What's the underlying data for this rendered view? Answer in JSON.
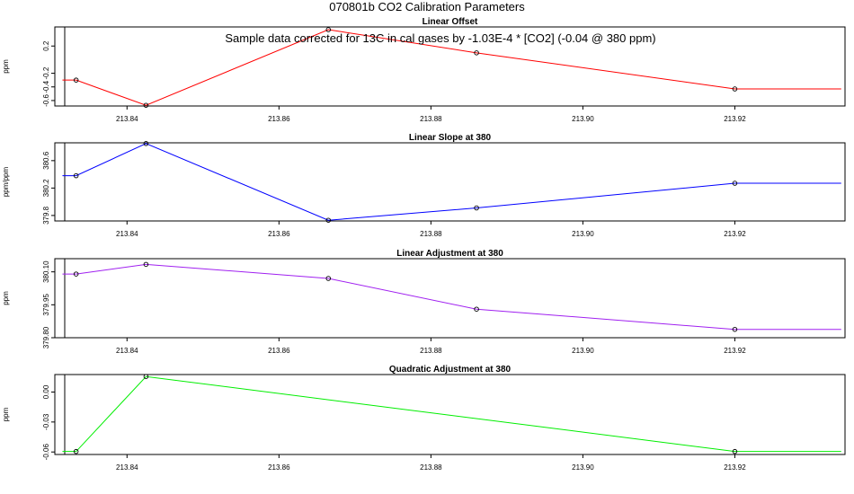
{
  "figure": {
    "title": "070801b   CO2 Calibration Parameters",
    "note": "Sample data corrected for 13C in cal gases by -1.03E-4 * [CO2] (-0.04 @ 380 ppm)"
  },
  "chart_data": [
    {
      "type": "line",
      "title": "Linear Offset",
      "ylabel": "ppm",
      "xlabel": "",
      "xlim": [
        213.8305,
        213.9345
      ],
      "ylim": [
        -0.68,
        0.48
      ],
      "xticks": [
        "213.84",
        "213.86",
        "213.88",
        "213.90",
        "213.92"
      ],
      "yticks": [
        "-0.6",
        "-0.4",
        "-0.2",
        "0.2"
      ],
      "color": "#ff0000",
      "reference_line_x": 213.8318,
      "extend_left_to": 213.8315,
      "extend_right_to": 213.934,
      "series": [
        {
          "x": [
            213.8333,
            213.8425,
            213.8665,
            213.886,
            213.92
          ],
          "y": [
            -0.3,
            -0.67,
            0.44,
            0.1,
            -0.43
          ]
        }
      ]
    },
    {
      "type": "line",
      "title": "Linear Slope at 380",
      "ylabel": "ppm/ppm",
      "xlabel": "",
      "xlim": [
        213.8305,
        213.9345
      ],
      "ylim": [
        379.72,
        380.86
      ],
      "xticks": [
        "213.84",
        "213.86",
        "213.88",
        "213.90",
        "213.92"
      ],
      "yticks": [
        "379.8",
        "380.2",
        "380.6"
      ],
      "color": "#0000ff",
      "reference_line_x": 213.8318,
      "extend_left_to": 213.8315,
      "extend_right_to": 213.934,
      "series": [
        {
          "x": [
            213.8333,
            213.8425,
            213.8665,
            213.886,
            213.92
          ],
          "y": [
            380.38,
            380.85,
            379.73,
            379.91,
            380.27
          ]
        }
      ]
    },
    {
      "type": "line",
      "title": "Linear Adjustment at 380",
      "ylabel": "ppm",
      "xlabel": "",
      "xlim": [
        213.8305,
        213.9345
      ],
      "ylim": [
        379.8,
        380.16
      ],
      "xticks": [
        "213.84",
        "213.86",
        "213.88",
        "213.90",
        "213.92"
      ],
      "yticks": [
        "379.80",
        "379.95",
        "380.10"
      ],
      "color": "#a020f0",
      "reference_line_x": 213.8318,
      "extend_left_to": 213.8315,
      "extend_right_to": 213.934,
      "series": [
        {
          "x": [
            213.8333,
            213.8425,
            213.8665,
            213.886,
            213.92
          ],
          "y": [
            380.09,
            380.134,
            380.07,
            379.93,
            379.838
          ]
        }
      ]
    },
    {
      "type": "line",
      "title": "Quadratic Adjustment at 380",
      "ylabel": "ppm",
      "xlabel": "",
      "xlim": [
        213.8305,
        213.9345
      ],
      "ylim": [
        -0.0625,
        0.0175
      ],
      "xticks": [
        "213.84",
        "213.86",
        "213.88",
        "213.90",
        "213.92"
      ],
      "yticks": [
        "-0.06",
        "-0.03",
        "0.00"
      ],
      "color": "#00ee00",
      "reference_line_x": 213.8318,
      "extend_left_to": 213.8315,
      "extend_right_to": 213.934,
      "series": [
        {
          "x": [
            213.8333,
            213.8425,
            213.92
          ],
          "y": [
            -0.0595,
            0.0155,
            -0.0595
          ]
        }
      ]
    }
  ]
}
